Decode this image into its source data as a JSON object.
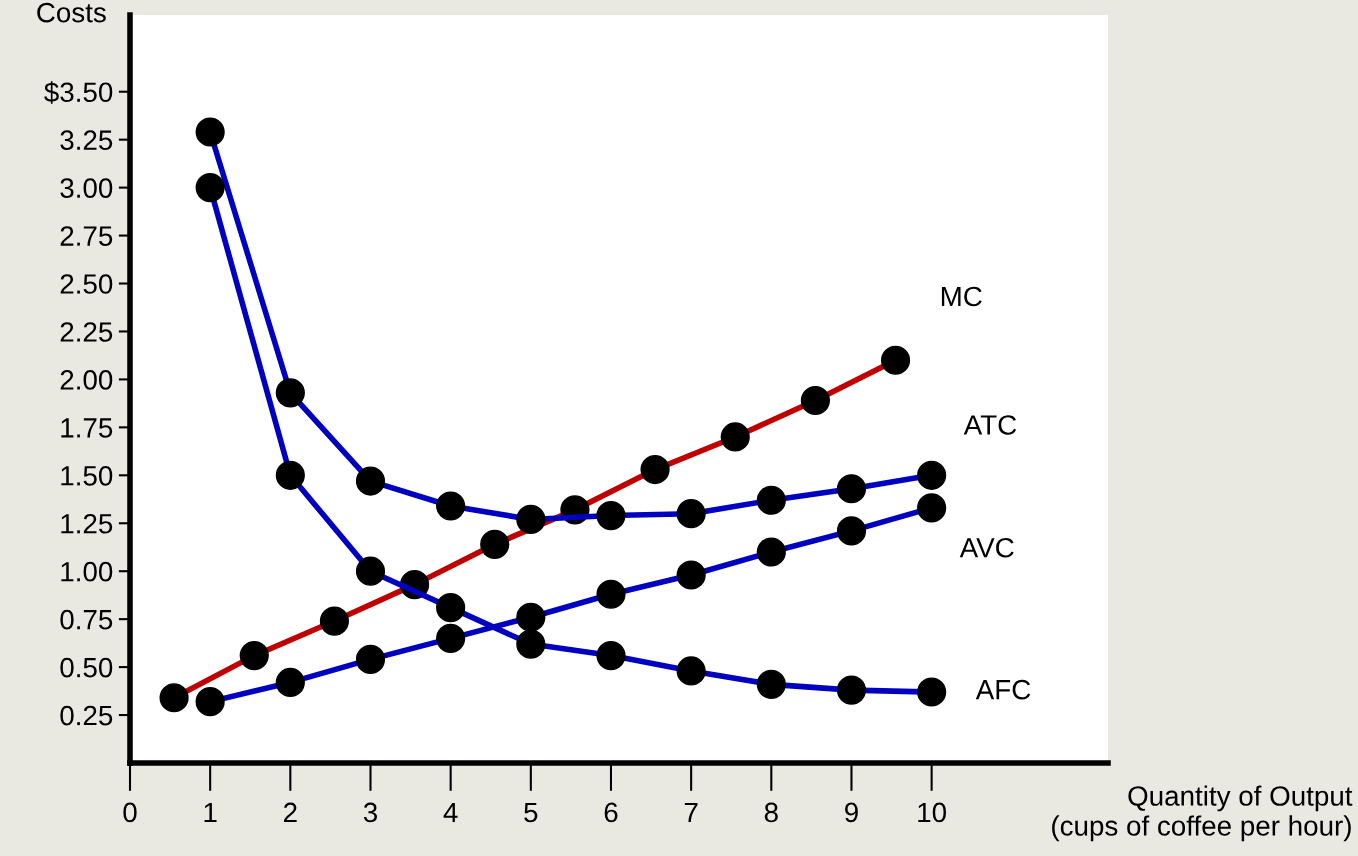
{
  "chart_data": {
    "type": "line",
    "xlabel": "Quantity of Output\n(cups of coffee per hour)",
    "ylabel": "Costs",
    "xlim": [
      0,
      12.2
    ],
    "ylim": [
      0,
      3.9
    ],
    "xticks": [
      0,
      1,
      2,
      3,
      4,
      5,
      6,
      7,
      8,
      9,
      10
    ],
    "yticks": [
      {
        "value": 0.25,
        "label": "0.25"
      },
      {
        "value": 0.5,
        "label": "0.50"
      },
      {
        "value": 0.75,
        "label": "0.75"
      },
      {
        "value": 1,
        "label": "1.00"
      },
      {
        "value": 1.25,
        "label": "1.25"
      },
      {
        "value": 1.5,
        "label": "1.50"
      },
      {
        "value": 1.75,
        "label": "1.75"
      },
      {
        "value": 2,
        "label": "2.00"
      },
      {
        "value": 2.25,
        "label": "2.25"
      },
      {
        "value": 2.5,
        "label": "2.50"
      },
      {
        "value": 2.75,
        "label": "2.75"
      },
      {
        "value": 3,
        "label": "3.00"
      },
      {
        "value": 3.25,
        "label": "3.25"
      },
      {
        "value": 3.5,
        "label": "$3.50"
      }
    ],
    "grid": false,
    "legend": false,
    "marker": "circle",
    "line_style": "solid",
    "series": [
      {
        "name": "MC",
        "color": "#c00000",
        "x": [
          0.55,
          1.55,
          2.55,
          3.55,
          4.55,
          5.55,
          6.55,
          7.55,
          8.55,
          9.55
        ],
        "values": [
          0.34,
          0.56,
          0.74,
          0.93,
          1.14,
          1.32,
          1.53,
          1.7,
          1.89,
          2.1
        ]
      },
      {
        "name": "ATC",
        "color": "#0000c0",
        "x": [
          1,
          2,
          3,
          4,
          5,
          6,
          7,
          8,
          9,
          10
        ],
        "values": [
          3.29,
          1.93,
          1.47,
          1.34,
          1.27,
          1.29,
          1.3,
          1.37,
          1.43,
          1.5
        ]
      },
      {
        "name": "AVC",
        "color": "#0000c0",
        "x": [
          1,
          2,
          3,
          4,
          5,
          6,
          7,
          8,
          9,
          10
        ],
        "values": [
          0.32,
          0.42,
          0.54,
          0.65,
          0.76,
          0.88,
          0.98,
          1.1,
          1.21,
          1.33
        ]
      },
      {
        "name": "AFC",
        "color": "#0000c0",
        "x": [
          1,
          2,
          3,
          4,
          5,
          6,
          7,
          8,
          9,
          10
        ],
        "values": [
          3.0,
          1.5,
          1.0,
          0.81,
          0.62,
          0.56,
          0.48,
          0.41,
          0.38,
          0.37
        ]
      }
    ]
  }
}
